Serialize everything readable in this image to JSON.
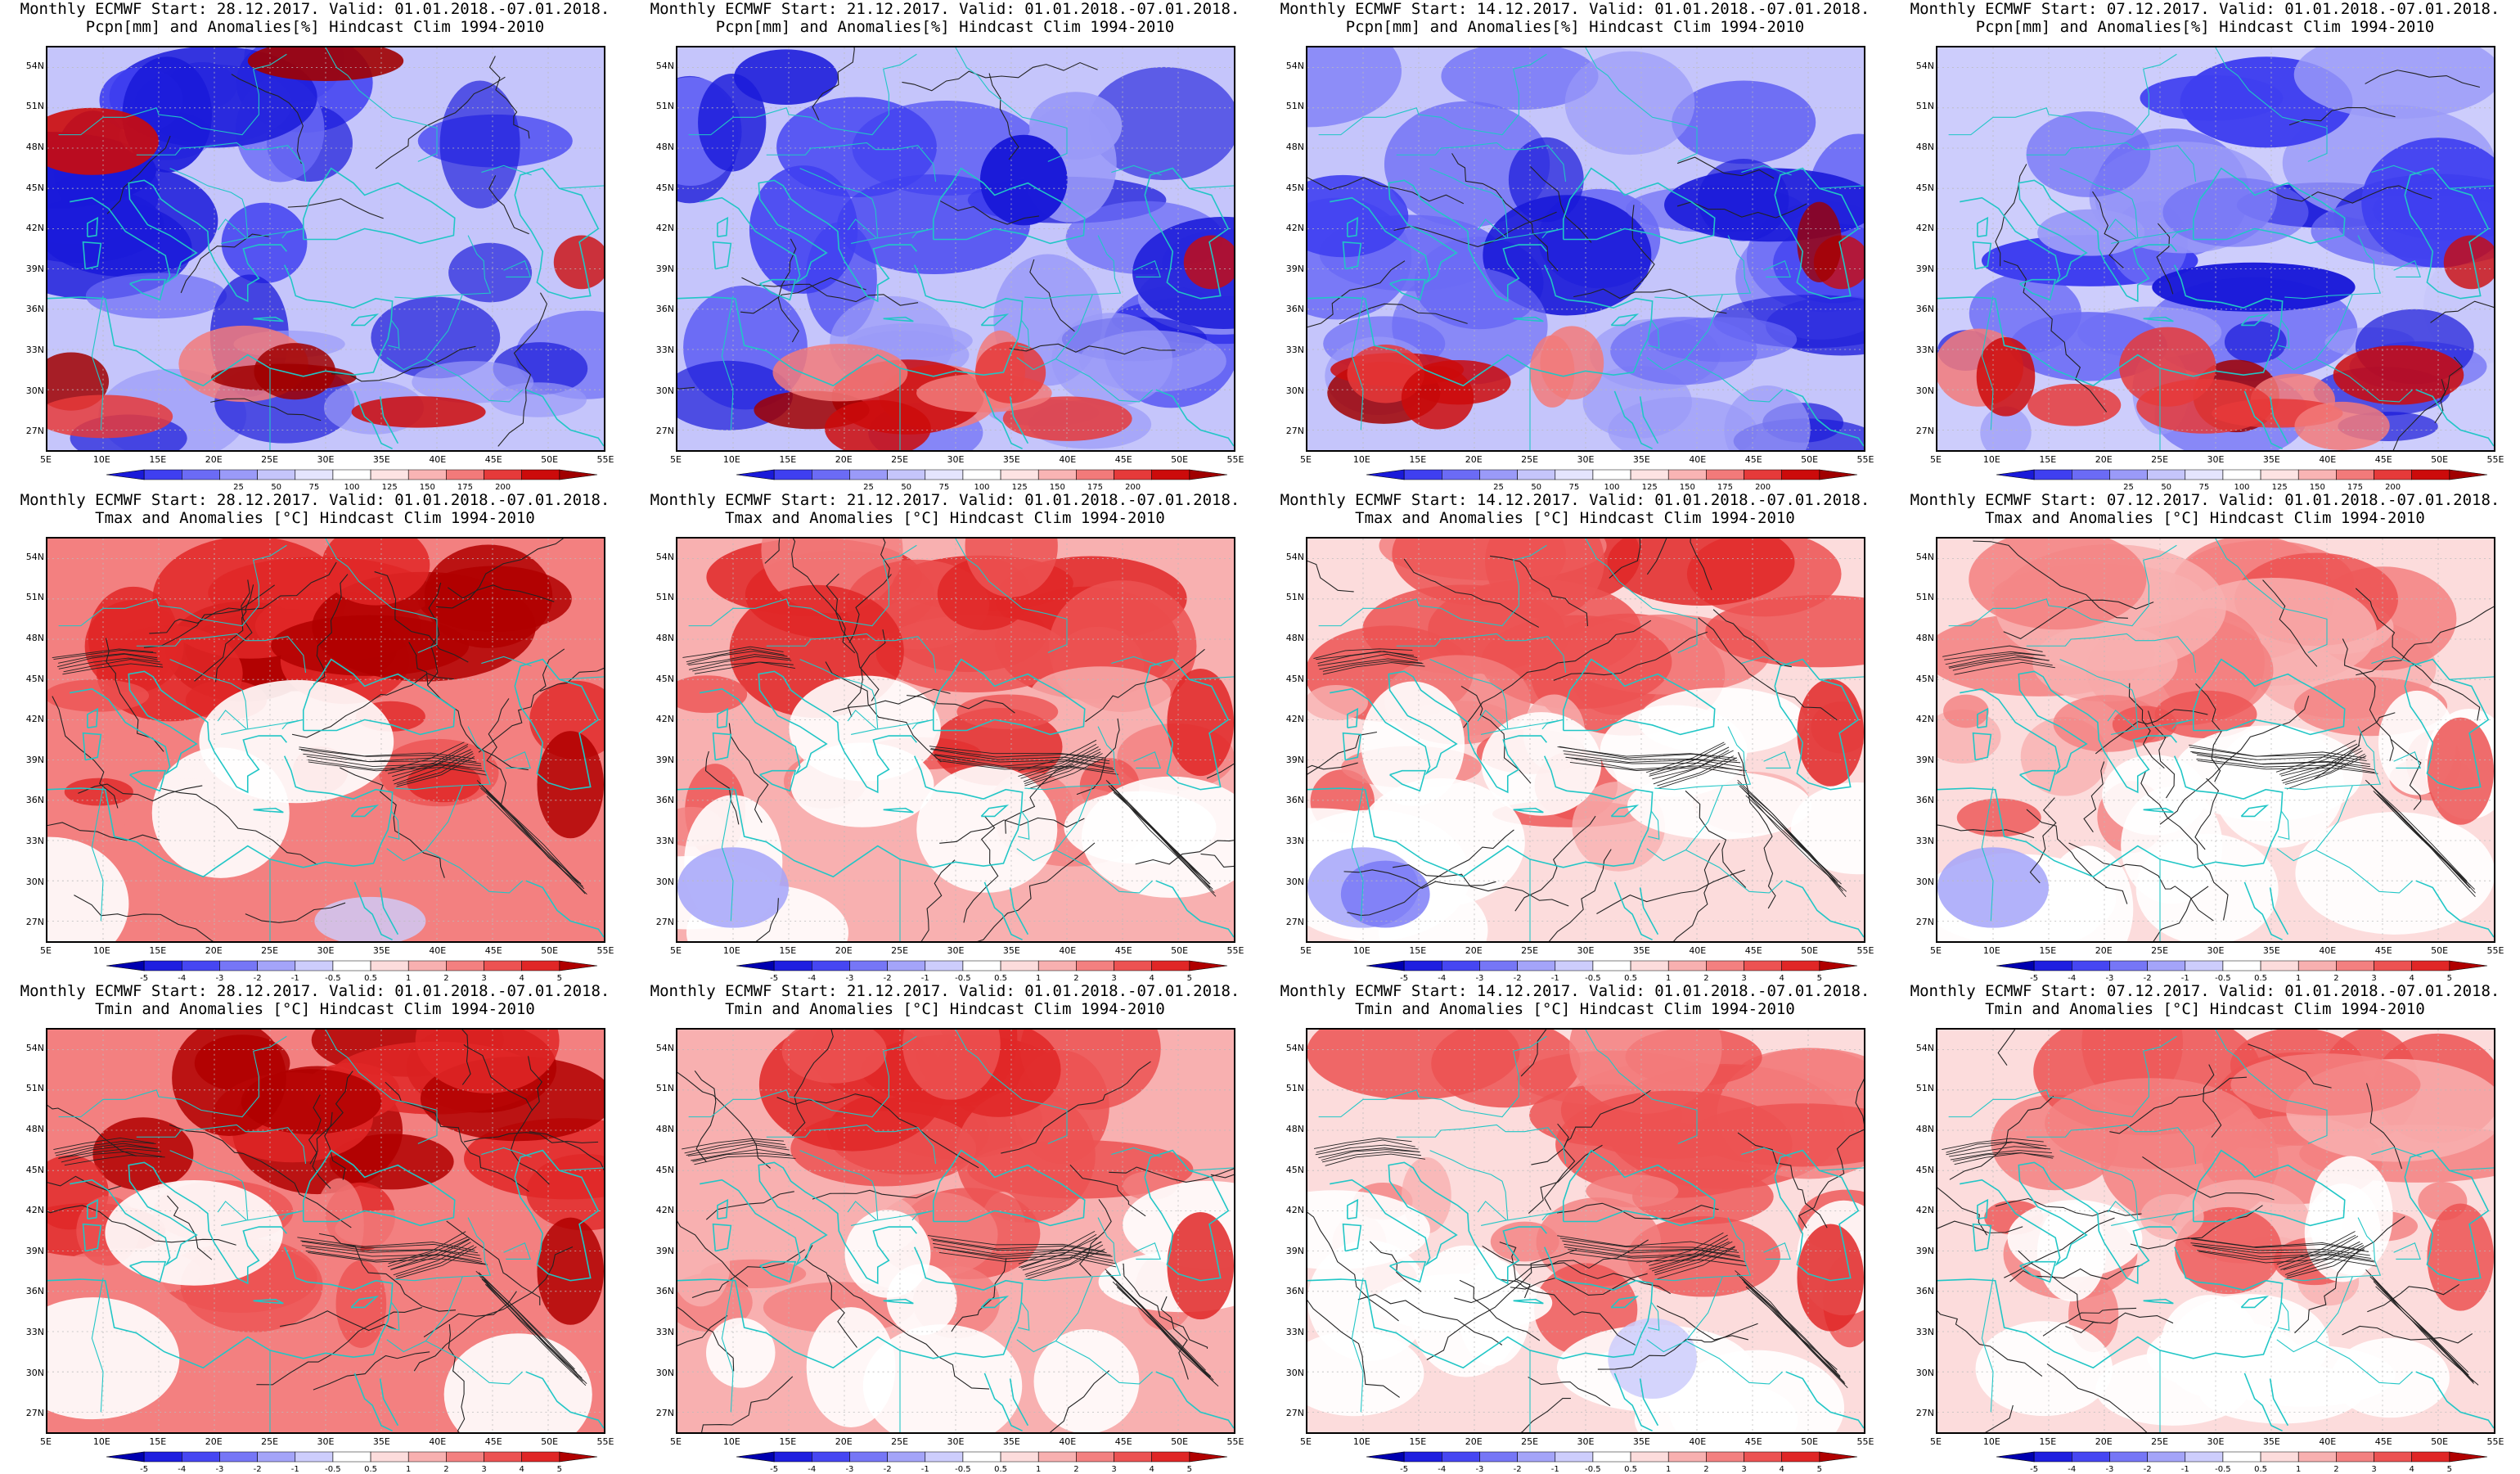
{
  "rows": [
    {
      "type": "pcpn",
      "line2": "Pcpn[mm] and Anomalies[%] Hindcast Clim 1994-2010",
      "colorbar": {
        "labels": [
          "25",
          "50",
          "75",
          "100",
          "125",
          "150",
          "175",
          "200"
        ],
        "colors": [
          "#1a1ad9",
          "#3f3ff0",
          "#6b6bf5",
          "#9a9af8",
          "#c5c5fb",
          "#e4e4fd",
          "#ffffff",
          "#fde3e3",
          "#f9b4b4",
          "#f27a7a",
          "#e63a3a",
          "#cc0b0b",
          "#a00000"
        ]
      }
    },
    {
      "type": "tmax",
      "line2": "Tmax and Anomalies [°C] Hindcast Clim 1994-2010",
      "colorbar": {
        "labels": [
          "-5",
          "-4",
          "-3",
          "-2",
          "-1",
          "-0.5",
          "0.5",
          "1",
          "2",
          "3",
          "4",
          "5"
        ],
        "colors": [
          "#0000b0",
          "#1e1ee0",
          "#4646f2",
          "#7676f6",
          "#a4a4f9",
          "#cdcdfc",
          "#ffffff",
          "#fcdcdc",
          "#f8b0b0",
          "#f38080",
          "#ec5252",
          "#e02727",
          "#b00000"
        ]
      }
    },
    {
      "type": "tmin",
      "line2": "Tmin and Anomalies [°C] Hindcast Clim 1994-2010",
      "colorbar": {
        "labels": [
          "-5",
          "-4",
          "-3",
          "-2",
          "-1",
          "-0.5",
          "0.5",
          "1",
          "2",
          "3",
          "4",
          "5"
        ],
        "colors": [
          "#0000b0",
          "#1e1ee0",
          "#4646f2",
          "#7676f6",
          "#a4a4f9",
          "#cdcdfc",
          "#ffffff",
          "#fcdcdc",
          "#f8b0b0",
          "#f38080",
          "#ec5252",
          "#e02727",
          "#b00000"
        ]
      }
    }
  ],
  "columns": [
    {
      "line1": "Monthly ECMWF Start: 28.12.2017. Valid: 01.01.2018.-07.01.2018."
    },
    {
      "line1": "Monthly ECMWF Start: 21.12.2017. Valid: 01.01.2018.-07.01.2018."
    },
    {
      "line1": "Monthly ECMWF Start: 14.12.2017. Valid: 01.01.2018.-07.01.2018."
    },
    {
      "line1": "Monthly ECMWF Start: 07.12.2017. Valid: 01.01.2018.-07.01.2018."
    }
  ],
  "lat_labels": [
    "54N",
    "51N",
    "48N",
    "45N",
    "42N",
    "39N",
    "36N",
    "33N",
    "30N",
    "27N"
  ],
  "lon_labels_pcpn": [
    "5E",
    "10E",
    "15E",
    "20E",
    "25E",
    "30E",
    "35E",
    "40E",
    "45E",
    "50E",
    "55E"
  ],
  "lon_labels_temp": [
    "5E",
    "10E",
    "15E",
    "20E",
    "25E",
    "30E",
    "35E",
    "40E",
    "45E",
    "50E",
    "55E"
  ],
  "colors": {
    "coastline": "#21c6c6",
    "contour": "#222222",
    "grid": "#bbbbbb"
  }
}
